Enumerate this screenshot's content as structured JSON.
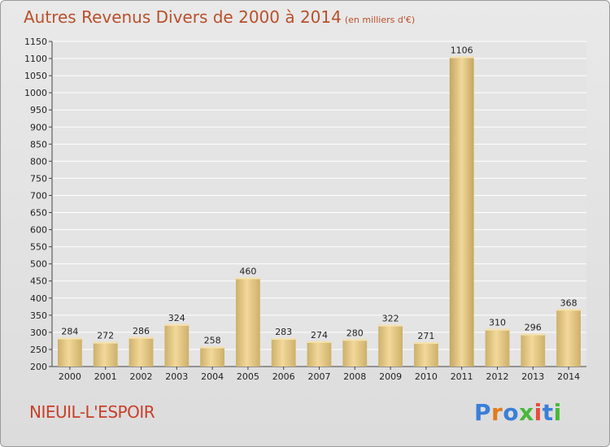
{
  "header": {
    "title": "Autres Revenus Divers de 2000 à 2014",
    "unit_note": "(en milliers d'€)"
  },
  "footer": {
    "commune": "NIEUIL-L'ESPOIR",
    "logo_text": [
      "P",
      "r",
      "o",
      "x",
      "i",
      "t",
      "i"
    ],
    "logo_colors": [
      "#3a7fd8",
      "#e27b1c",
      "#3a7fd8",
      "#49b83a",
      "#e84c3d",
      "#3a7fd8",
      "#49b83a"
    ]
  },
  "colors": {
    "bar_light": "#f2d89a",
    "bar_dark": "#cdb06a",
    "bar_highlight_dark": "#c4a65f",
    "title": "#b8502a",
    "commune": "#c8402a"
  },
  "chart_data": {
    "type": "bar",
    "categories": [
      "2000",
      "2001",
      "2002",
      "2003",
      "2004",
      "2005",
      "2006",
      "2007",
      "2008",
      "2009",
      "2010",
      "2011",
      "2012",
      "2013",
      "2014"
    ],
    "values": [
      284,
      272,
      286,
      324,
      258,
      460,
      283,
      274,
      280,
      322,
      271,
      1106,
      310,
      296,
      368
    ],
    "ylim": [
      200,
      1150
    ],
    "yticks": [
      200,
      250,
      300,
      350,
      400,
      450,
      500,
      550,
      600,
      650,
      700,
      750,
      800,
      850,
      900,
      950,
      1000,
      1050,
      1100,
      1150
    ],
    "grid": true
  }
}
